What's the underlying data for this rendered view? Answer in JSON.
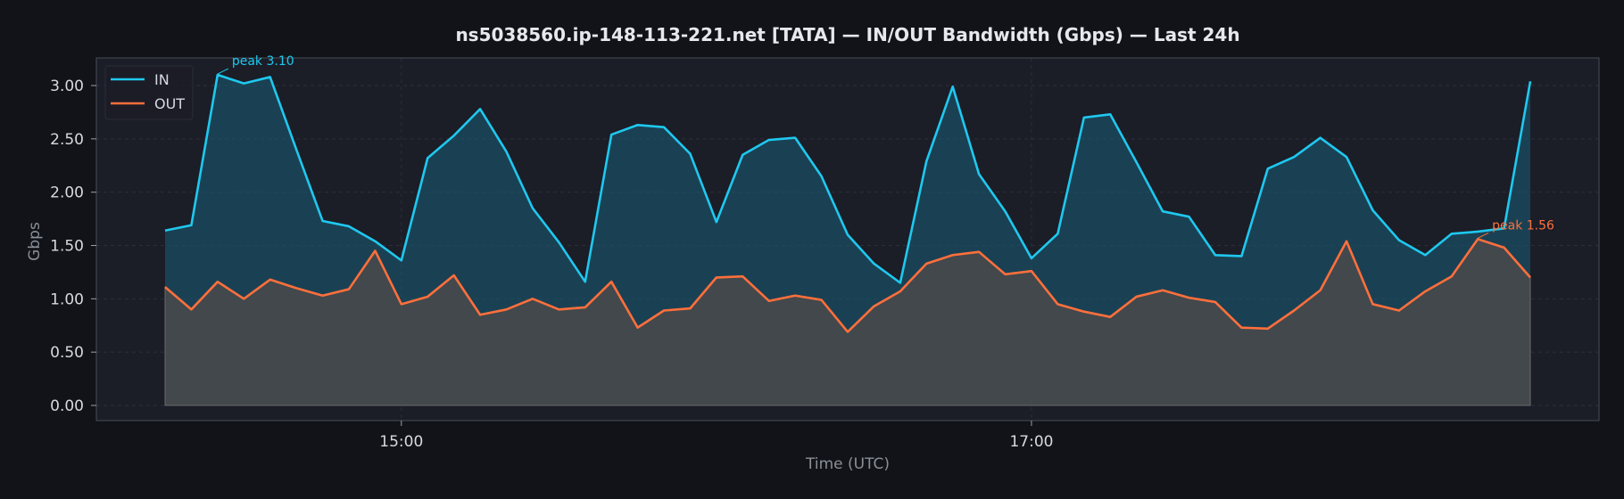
{
  "chart_data": {
    "type": "line",
    "title": "ns5038560.ip-148-113-221.net [TATA] — IN/OUT Bandwidth (Gbps) — Last 24h",
    "xlabel": "Time (UTC)",
    "ylabel": "Gbps",
    "x_start": "14:15",
    "x_step_minutes": 5,
    "x_ticks": [
      "15:00",
      "17:00"
    ],
    "ylim": [
      0,
      3.1
    ],
    "y_ticks": [
      "0.00",
      "0.50",
      "1.00",
      "1.50",
      "2.00",
      "2.50",
      "3.00"
    ],
    "grid": true,
    "legend_position": "top-left",
    "series": [
      {
        "name": "IN",
        "color": "#1fc8ef",
        "values": [
          1.64,
          1.69,
          3.1,
          3.02,
          3.08,
          2.4,
          1.73,
          1.68,
          1.54,
          1.36,
          2.32,
          2.53,
          2.78,
          2.38,
          1.85,
          1.53,
          1.16,
          2.54,
          2.63,
          2.61,
          2.36,
          1.72,
          2.35,
          2.49,
          2.51,
          2.15,
          1.6,
          1.33,
          1.15,
          2.29,
          2.99,
          2.17,
          1.82,
          1.38,
          1.61,
          2.7,
          2.73,
          2.28,
          1.82,
          1.77,
          1.41,
          1.4,
          2.22,
          2.33,
          2.51,
          2.33,
          1.83,
          1.55,
          1.41,
          1.61,
          1.63,
          1.66,
          3.04
        ]
      },
      {
        "name": "OUT",
        "color": "#ff6f3c",
        "values": [
          1.11,
          0.9,
          1.16,
          1.0,
          1.18,
          1.1,
          1.03,
          1.09,
          1.45,
          0.95,
          1.02,
          1.22,
          0.85,
          0.9,
          1.0,
          0.9,
          0.92,
          1.16,
          0.73,
          0.89,
          0.91,
          1.2,
          1.21,
          0.98,
          1.03,
          0.99,
          0.69,
          0.93,
          1.07,
          1.33,
          1.41,
          1.44,
          1.23,
          1.26,
          0.95,
          0.88,
          0.83,
          1.02,
          1.08,
          1.01,
          0.97,
          0.73,
          0.72,
          0.89,
          1.08,
          1.54,
          0.95,
          0.89,
          1.07,
          1.21,
          1.56,
          1.48,
          1.2
        ]
      }
    ],
    "annotations": [
      {
        "series": "IN",
        "index": 2,
        "text": "peak 3.10",
        "color": "#1fc8ef"
      },
      {
        "series": "OUT",
        "index": 50,
        "text": "peak 1.56",
        "color": "#ff6f3c"
      }
    ]
  },
  "colors": {
    "page_bg": "#111318",
    "plot_bg": "#1b1d27",
    "grid": "#3a3d48",
    "axis": "#4a4d58"
  }
}
